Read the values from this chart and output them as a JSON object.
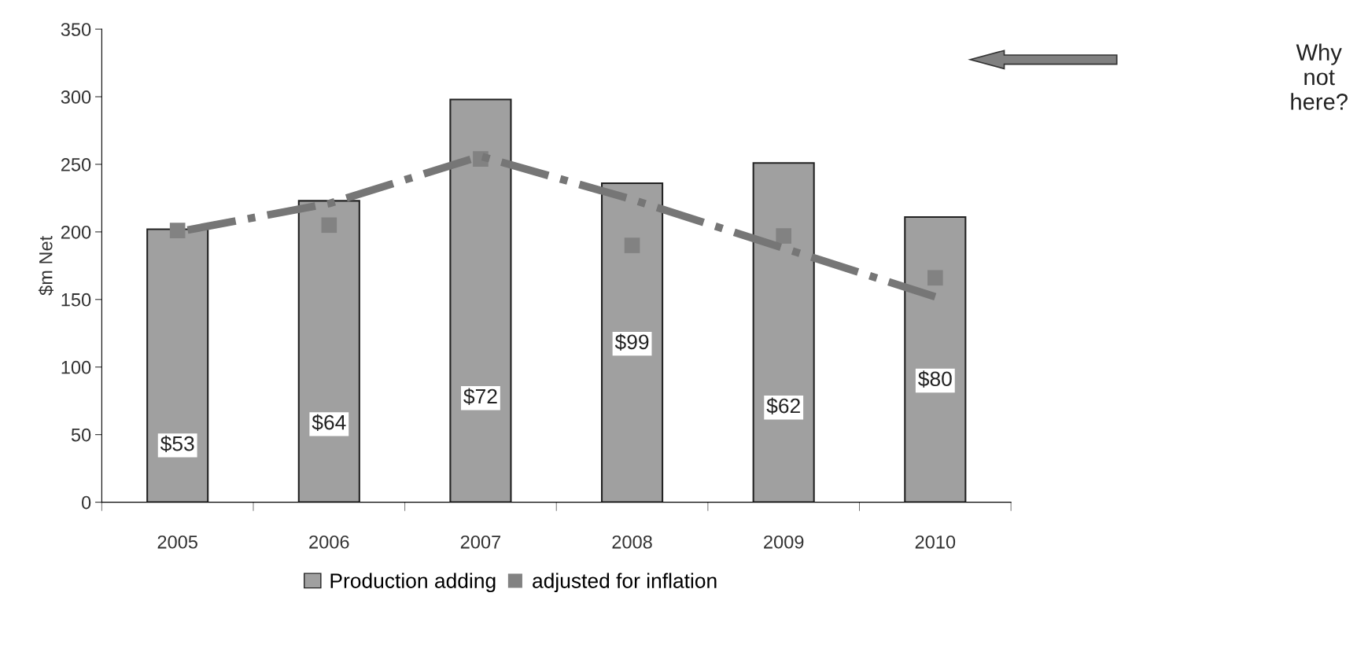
{
  "chart_data": {
    "type": "bar",
    "ylabel": "$m Net",
    "categories": [
      "2005",
      "2006",
      "2007",
      "2008",
      "2009",
      "2010"
    ],
    "series": [
      {
        "name": "Production adding",
        "color": "#a0a0a0",
        "values": [
          202,
          223,
          298,
          236,
          251,
          211
        ]
      },
      {
        "name": "adjusted for inflation",
        "type": "scatter",
        "marker": "square",
        "color": "#828282",
        "values": [
          201,
          205,
          254,
          190,
          197,
          166
        ]
      },
      {
        "type": "line",
        "line_style": "dashdot",
        "color": "#767676",
        "values": [
          200,
          221,
          256,
          224,
          188,
          152
        ]
      }
    ],
    "ylim": [
      0,
      350
    ],
    "yticks": [
      0,
      50,
      100,
      150,
      200,
      250,
      300,
      350
    ],
    "grid": false,
    "legend": "bottom",
    "annotations": [
      "$53",
      "$64",
      "$72",
      "$99",
      "$62",
      "$80",
      "Why not here?"
    ]
  }
}
